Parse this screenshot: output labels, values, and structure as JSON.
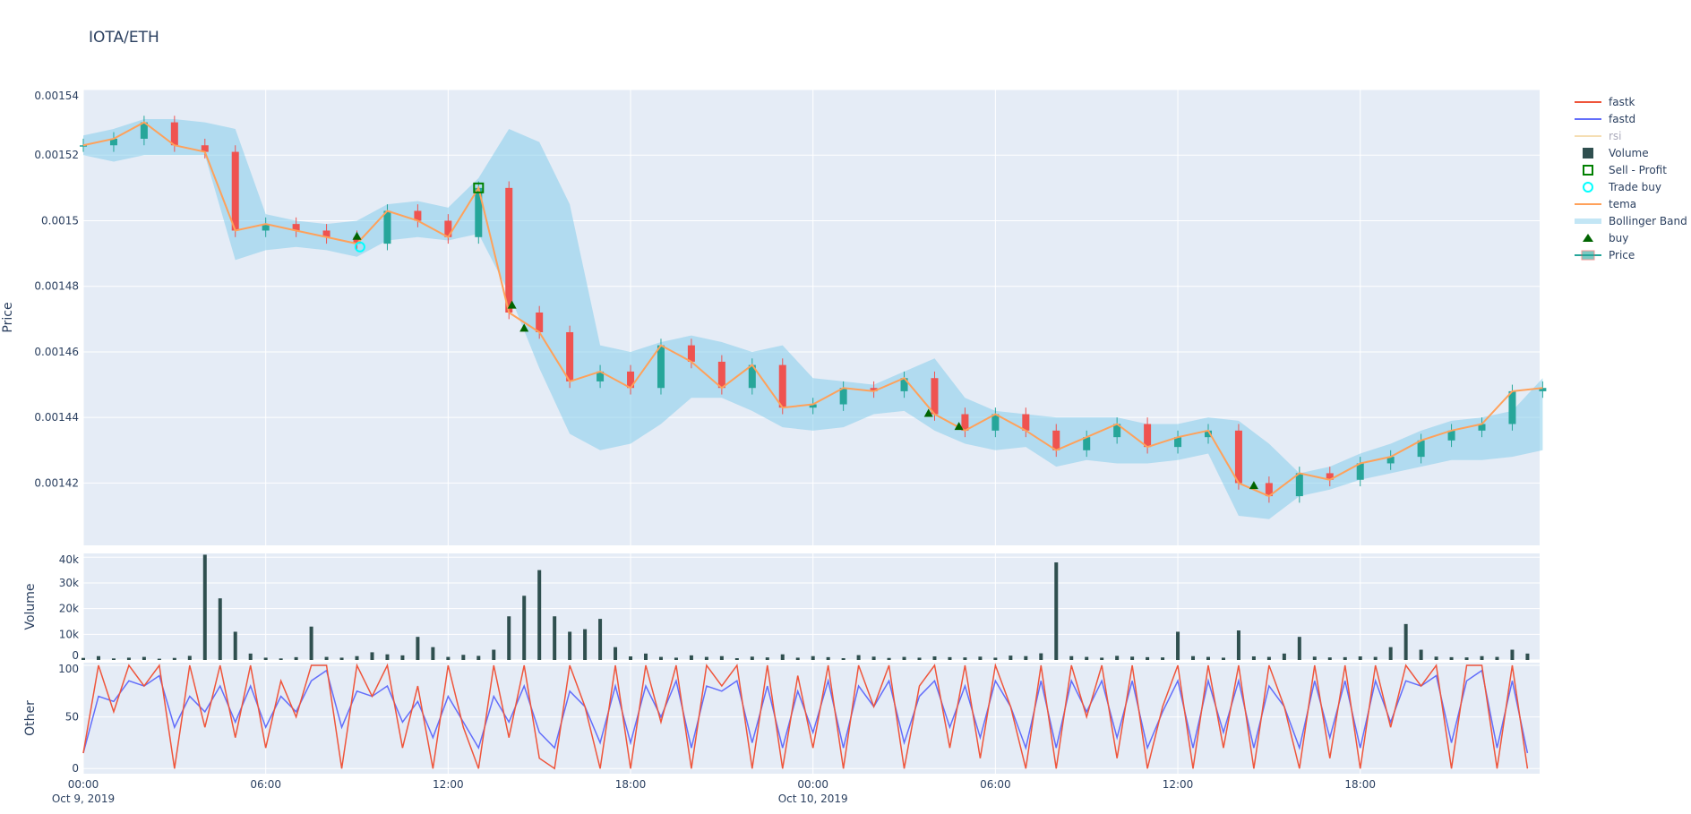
{
  "title": "IOTA/ETH",
  "legend": [
    "fastk",
    "fastd",
    "rsi",
    "Volume",
    "Sell - Profit",
    "Trade buy",
    "tema",
    "Bollinger Band",
    "buy",
    "Price"
  ],
  "colors": {
    "fastk": "#ef553b",
    "fastd": "#636efa",
    "rsi": "#f5deb3",
    "volume": "#2f4f4f",
    "sell": "#008000",
    "trade_buy": "#00ffff",
    "tema": "#ffa15a",
    "bb": "#87ceeb",
    "buy": "#006400",
    "up": "#26a69a",
    "down": "#ef5350",
    "plot_bg": "#e5ecf6"
  },
  "chart_data": [
    {
      "type": "candlestick",
      "ylabel": "Price",
      "ylim": [
        0.001401,
        0.00154
      ],
      "yticks": [
        "0.00142",
        "0.00144",
        "0.00146",
        "0.00148",
        "0.0015",
        "0.00152",
        "0.00154"
      ],
      "xticks": [
        {
          "h": 0,
          "l1": "00:00",
          "l2": "Oct 9, 2019"
        },
        {
          "h": 6,
          "l1": "06:00"
        },
        {
          "h": 12,
          "l1": "12:00"
        },
        {
          "h": 18,
          "l1": "18:00"
        },
        {
          "h": 24,
          "l1": "00:00",
          "l2": "Oct 10, 2019"
        },
        {
          "h": 30,
          "l1": "06:00"
        },
        {
          "h": 36,
          "l1": "12:00"
        },
        {
          "h": 42,
          "l1": "18:00"
        }
      ],
      "x_hours": [
        0,
        1,
        2,
        3,
        4,
        5,
        6,
        7,
        8,
        9,
        10,
        11,
        12,
        13,
        14,
        15,
        16,
        17,
        18,
        19,
        20,
        21,
        22,
        23,
        24,
        25,
        26,
        27,
        28,
        29,
        30,
        31,
        32,
        33,
        34,
        35,
        36,
        37,
        38,
        39,
        40,
        41,
        42,
        43,
        44,
        45,
        46,
        47,
        48
      ],
      "close": [
        0.001523,
        0.001525,
        0.00153,
        0.001523,
        0.001521,
        0.001497,
        0.001499,
        0.001497,
        0.001495,
        0.001493,
        0.001503,
        0.0015,
        0.001495,
        0.00151,
        0.001472,
        0.001466,
        0.001451,
        0.001454,
        0.001449,
        0.001462,
        0.001457,
        0.001449,
        0.001456,
        0.001443,
        0.001444,
        0.001449,
        0.001448,
        0.001452,
        0.001441,
        0.001436,
        0.001441,
        0.001436,
        0.00143,
        0.001434,
        0.001438,
        0.001431,
        0.001434,
        0.001436,
        0.00142,
        0.001416,
        0.001423,
        0.001421,
        0.001426,
        0.001428,
        0.001433,
        0.001436,
        0.001438,
        0.001448,
        0.001449
      ],
      "tema": [
        0.001523,
        0.001525,
        0.00153,
        0.001523,
        0.001521,
        0.001497,
        0.001499,
        0.001497,
        0.001495,
        0.001493,
        0.001503,
        0.0015,
        0.001495,
        0.00151,
        0.001472,
        0.001466,
        0.001451,
        0.001454,
        0.001449,
        0.001462,
        0.001457,
        0.001449,
        0.001456,
        0.001443,
        0.001444,
        0.001449,
        0.001448,
        0.001452,
        0.001441,
        0.001436,
        0.001441,
        0.001436,
        0.00143,
        0.001434,
        0.001438,
        0.001431,
        0.001434,
        0.001436,
        0.00142,
        0.001416,
        0.001423,
        0.001421,
        0.001426,
        0.001428,
        0.001433,
        0.001436,
        0.001438,
        0.001448,
        0.001449
      ],
      "bb_upper": [
        0.001526,
        0.001528,
        0.001531,
        0.001531,
        0.00153,
        0.001528,
        0.001502,
        0.0015,
        0.001499,
        0.0015,
        0.001505,
        0.001506,
        0.001504,
        0.001513,
        0.001528,
        0.001524,
        0.001505,
        0.001462,
        0.00146,
        0.001463,
        0.001465,
        0.001463,
        0.00146,
        0.001462,
        0.001452,
        0.001451,
        0.00145,
        0.001454,
        0.001458,
        0.001446,
        0.001442,
        0.001441,
        0.00144,
        0.00144,
        0.00144,
        0.001438,
        0.001438,
        0.00144,
        0.001439,
        0.001432,
        0.001423,
        0.001425,
        0.001429,
        0.001432,
        0.001436,
        0.001439,
        0.00144,
        0.001442,
        0.001452
      ],
      "bb_lower": [
        0.00152,
        0.001518,
        0.00152,
        0.00152,
        0.00152,
        0.001488,
        0.001491,
        0.001492,
        0.001491,
        0.001489,
        0.001494,
        0.001495,
        0.001494,
        0.001496,
        0.001478,
        0.001455,
        0.001435,
        0.00143,
        0.001432,
        0.001438,
        0.001446,
        0.001446,
        0.001442,
        0.001437,
        0.001436,
        0.001437,
        0.001441,
        0.001442,
        0.001436,
        0.001432,
        0.00143,
        0.001431,
        0.001425,
        0.001427,
        0.001426,
        0.001426,
        0.001427,
        0.001429,
        0.00141,
        0.001409,
        0.001416,
        0.001418,
        0.001421,
        0.001423,
        0.001425,
        0.001427,
        0.001427,
        0.001428,
        0.00143
      ],
      "buy_signals": [
        [
          9.0,
          0.001495
        ],
        [
          14.1,
          0.001474
        ],
        [
          14.5,
          0.001467
        ],
        [
          27.8,
          0.001441
        ],
        [
          28.8,
          0.001437
        ],
        [
          38.5,
          0.001419
        ]
      ],
      "sell_profit": [
        [
          13.0,
          0.00151
        ]
      ],
      "trade_buy": [
        [
          9.1,
          0.001492
        ]
      ]
    },
    {
      "type": "bar",
      "ylabel": "Volume",
      "ylim": [
        0,
        41500
      ],
      "yticks": [
        {
          "v": 0,
          "l": "0"
        },
        {
          "v": 10000,
          "l": "10k"
        },
        {
          "v": 20000,
          "l": "20k"
        },
        {
          "v": 30000,
          "l": "30k"
        },
        {
          "v": 40000,
          "l": "40k"
        }
      ],
      "x_step_hours": 0.5,
      "values": [
        800,
        1500,
        600,
        900,
        1200,
        500,
        800,
        1600,
        41000,
        24000,
        11000,
        2500,
        900,
        600,
        1100,
        13000,
        1200,
        900,
        1500,
        3000,
        2200,
        1800,
        9000,
        5000,
        1200,
        2000,
        1600,
        4000,
        17000,
        25000,
        35000,
        17000,
        11000,
        12000,
        16000,
        5000,
        1400,
        2500,
        1200,
        900,
        1800,
        1200,
        1500,
        700,
        1300,
        1000,
        2200,
        900,
        1500,
        1100,
        700,
        1900,
        1300,
        800,
        1200,
        900,
        1400,
        1100,
        1000,
        1300,
        900,
        1700,
        1500,
        2600,
        38000,
        1500,
        1200,
        900,
        1600,
        1300,
        1100,
        1000,
        11000,
        1500,
        1200,
        900,
        11500,
        1400,
        1200,
        2500,
        9000,
        1300,
        1000,
        1100,
        1400,
        1200,
        5000,
        14000,
        4000,
        1300,
        1100,
        1000,
        1500,
        1200,
        4000,
        2500
      ]
    },
    {
      "type": "line",
      "ylabel": "Other",
      "ylim": [
        -5,
        102.6
      ],
      "yticks": [
        {
          "v": 0,
          "l": "0"
        },
        {
          "v": 50,
          "l": "50"
        },
        {
          "v": 100,
          "l": "100"
        }
      ],
      "x_step_hours": 0.5,
      "fastk": [
        15,
        100,
        55,
        100,
        80,
        100,
        0,
        100,
        40,
        100,
        30,
        100,
        20,
        85,
        50,
        100,
        100,
        0,
        100,
        70,
        100,
        20,
        80,
        0,
        100,
        40,
        0,
        100,
        30,
        100,
        10,
        0,
        100,
        60,
        0,
        100,
        0,
        100,
        45,
        100,
        0,
        100,
        80,
        100,
        0,
        100,
        0,
        90,
        20,
        100,
        0,
        100,
        60,
        100,
        0,
        80,
        100,
        20,
        100,
        10,
        100,
        60,
        0,
        100,
        0,
        100,
        50,
        100,
        10,
        100,
        0,
        60,
        100,
        0,
        100,
        20,
        100,
        0,
        100,
        60,
        0,
        100,
        10,
        100,
        0,
        100,
        40,
        100,
        80,
        100,
        0,
        100,
        100,
        0,
        100,
        0
      ],
      "fastd": [
        15,
        70,
        65,
        85,
        80,
        90,
        40,
        70,
        55,
        80,
        45,
        80,
        40,
        70,
        55,
        85,
        95,
        40,
        75,
        70,
        80,
        45,
        65,
        30,
        70,
        45,
        20,
        70,
        45,
        80,
        35,
        20,
        75,
        60,
        25,
        80,
        25,
        80,
        50,
        85,
        20,
        80,
        75,
        85,
        25,
        80,
        20,
        75,
        35,
        85,
        20,
        80,
        60,
        85,
        25,
        70,
        85,
        40,
        80,
        30,
        85,
        60,
        20,
        85,
        20,
        85,
        55,
        85,
        30,
        85,
        20,
        55,
        85,
        20,
        85,
        35,
        85,
        20,
        80,
        60,
        20,
        85,
        30,
        85,
        20,
        85,
        45,
        85,
        80,
        90,
        25,
        85,
        95,
        20,
        85,
        15
      ]
    }
  ]
}
